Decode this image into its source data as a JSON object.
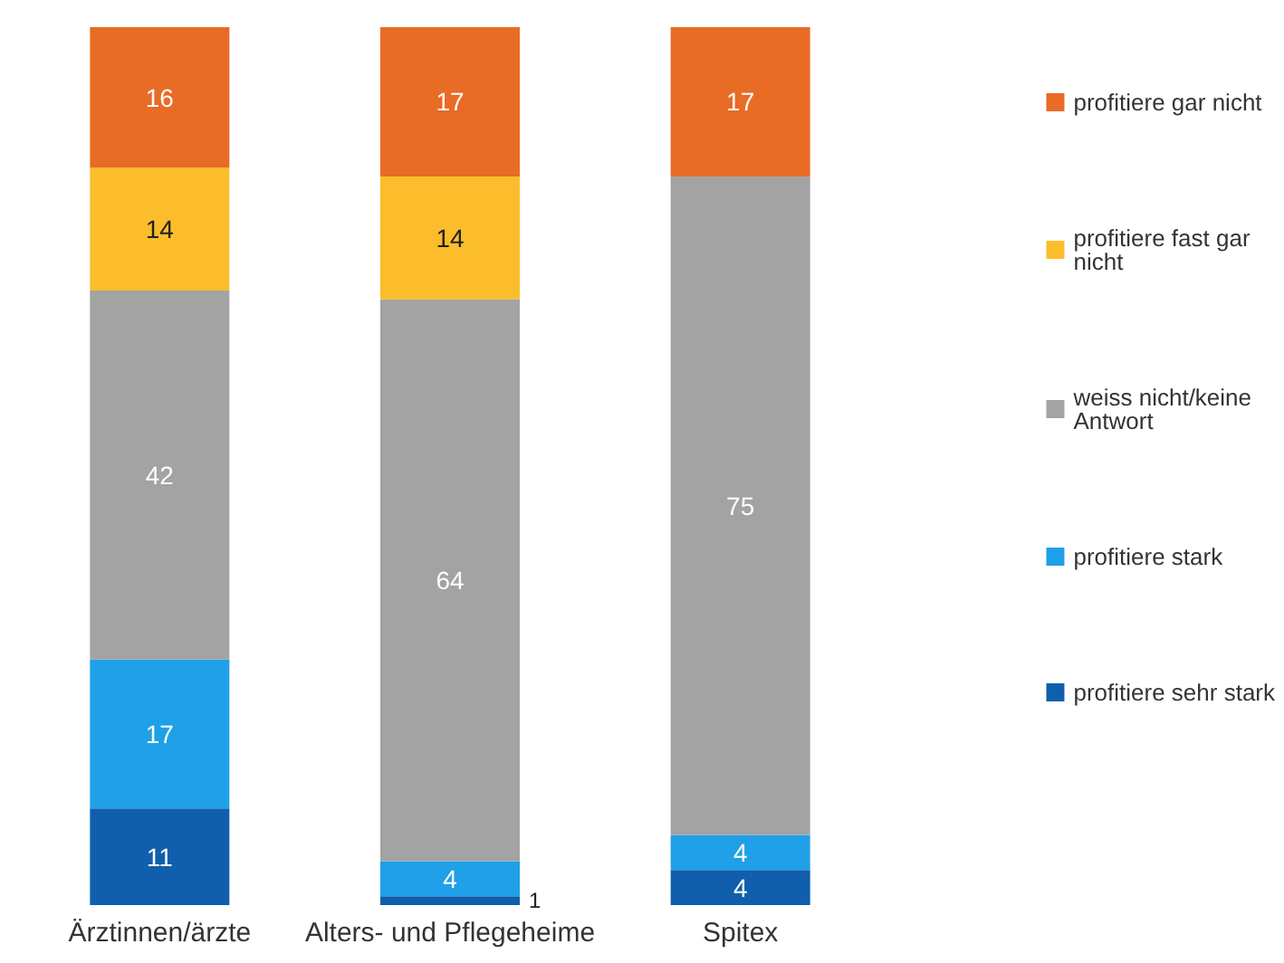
{
  "chart_data": {
    "type": "bar",
    "stacked": true,
    "data_labels": true,
    "legend": "right",
    "categories": [
      "Ärztinnen/ärzte",
      "Alters- und Pflegeheime",
      "Spitex"
    ],
    "series": [
      {
        "name": "profitiere sehr stark",
        "color": "#0f5fad",
        "values": [
          11,
          1,
          4
        ]
      },
      {
        "name": "profitiere stark",
        "color": "#1fa0e8",
        "values": [
          17,
          4,
          4
        ]
      },
      {
        "name": "weiss nicht/keine Antwort",
        "color": "#a3a3a3",
        "values": [
          42,
          64,
          75
        ]
      },
      {
        "name": "profitiere fast gar nicht",
        "color": "#fbbd2b",
        "values": [
          14,
          14,
          null
        ]
      },
      {
        "name": "profitiere gar nicht",
        "color": "#e86b26",
        "values": [
          16,
          17,
          17
        ]
      }
    ]
  }
}
